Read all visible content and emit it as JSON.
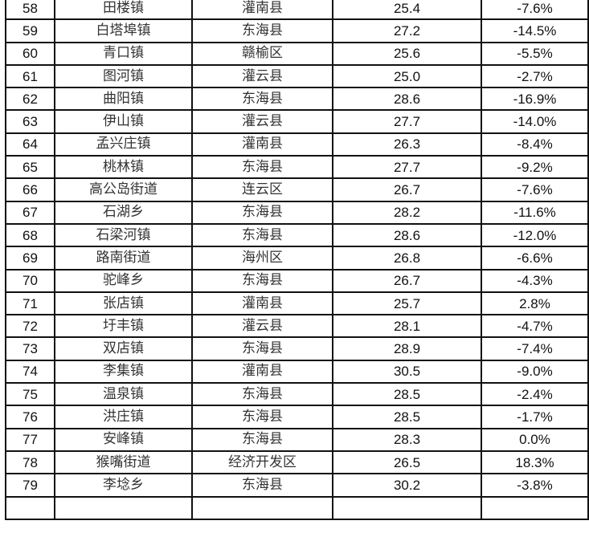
{
  "rows": [
    {
      "rank": "58",
      "town": "田楼镇",
      "county": "灌南县",
      "value": "25.4",
      "change": "-7.6%"
    },
    {
      "rank": "59",
      "town": "白塔埠镇",
      "county": "东海县",
      "value": "27.2",
      "change": "-14.5%"
    },
    {
      "rank": "60",
      "town": "青口镇",
      "county": "赣榆区",
      "value": "25.6",
      "change": "-5.5%"
    },
    {
      "rank": "61",
      "town": "图河镇",
      "county": "灌云县",
      "value": "25.0",
      "change": "-2.7%"
    },
    {
      "rank": "62",
      "town": "曲阳镇",
      "county": "东海县",
      "value": "28.6",
      "change": "-16.9%"
    },
    {
      "rank": "63",
      "town": "伊山镇",
      "county": "灌云县",
      "value": "27.7",
      "change": "-14.0%"
    },
    {
      "rank": "64",
      "town": "孟兴庄镇",
      "county": "灌南县",
      "value": "26.3",
      "change": "-8.4%"
    },
    {
      "rank": "65",
      "town": "桃林镇",
      "county": "东海县",
      "value": "27.7",
      "change": "-9.2%"
    },
    {
      "rank": "66",
      "town": "高公岛街道",
      "county": "连云区",
      "value": "26.7",
      "change": "-7.6%"
    },
    {
      "rank": "67",
      "town": "石湖乡",
      "county": "东海县",
      "value": "28.2",
      "change": "-11.6%"
    },
    {
      "rank": "68",
      "town": "石梁河镇",
      "county": "东海县",
      "value": "28.6",
      "change": "-12.0%"
    },
    {
      "rank": "69",
      "town": "路南街道",
      "county": "海州区",
      "value": "26.8",
      "change": "-6.6%"
    },
    {
      "rank": "70",
      "town": "驼峰乡",
      "county": "东海县",
      "value": "26.7",
      "change": "-4.3%"
    },
    {
      "rank": "71",
      "town": "张店镇",
      "county": "灌南县",
      "value": "25.7",
      "change": "2.8%"
    },
    {
      "rank": "72",
      "town": "圩丰镇",
      "county": "灌云县",
      "value": "28.1",
      "change": "-4.7%"
    },
    {
      "rank": "73",
      "town": "双店镇",
      "county": "东海县",
      "value": "28.9",
      "change": "-7.4%"
    },
    {
      "rank": "74",
      "town": "李集镇",
      "county": "灌南县",
      "value": "30.5",
      "change": "-9.0%"
    },
    {
      "rank": "75",
      "town": "温泉镇",
      "county": "东海县",
      "value": "28.5",
      "change": "-2.4%"
    },
    {
      "rank": "76",
      "town": "洪庄镇",
      "county": "东海县",
      "value": "28.5",
      "change": "-1.7%"
    },
    {
      "rank": "77",
      "town": "安峰镇",
      "county": "东海县",
      "value": "28.3",
      "change": "0.0%"
    },
    {
      "rank": "78",
      "town": "猴嘴街道",
      "county": "经济开发区",
      "value": "26.5",
      "change": "18.3%"
    },
    {
      "rank": "79",
      "town": "李埝乡",
      "county": "东海县",
      "value": "30.2",
      "change": "-3.8%"
    }
  ]
}
